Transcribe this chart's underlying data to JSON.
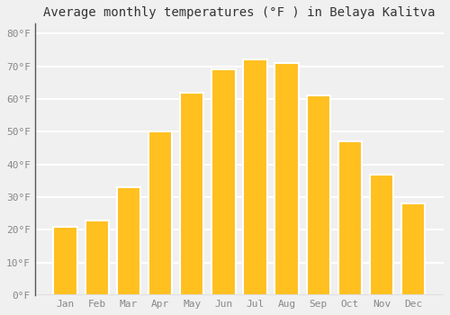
{
  "title": "Average monthly temperatures (°F ) in Belaya Kalitva",
  "months": [
    "Jan",
    "Feb",
    "Mar",
    "Apr",
    "May",
    "Jun",
    "Jul",
    "Aug",
    "Sep",
    "Oct",
    "Nov",
    "Dec"
  ],
  "values": [
    21,
    23,
    33,
    50,
    62,
    69,
    72,
    71,
    61,
    47,
    37,
    28
  ],
  "bar_color": "#FFC020",
  "bar_edge_color": "#FFFFFF",
  "background_color": "#F0F0F0",
  "grid_color": "#FFFFFF",
  "plot_bg_color": "#F0F0F0",
  "ylim": [
    0,
    83
  ],
  "yticks": [
    0,
    10,
    20,
    30,
    40,
    50,
    60,
    70,
    80
  ],
  "ytick_labels": [
    "0°F",
    "10°F",
    "20°F",
    "30°F",
    "40°F",
    "50°F",
    "60°F",
    "70°F",
    "80°F"
  ],
  "tick_color": "#888888",
  "spine_color": "#555555",
  "title_fontsize": 10,
  "tick_fontsize": 8,
  "font_family": "monospace"
}
